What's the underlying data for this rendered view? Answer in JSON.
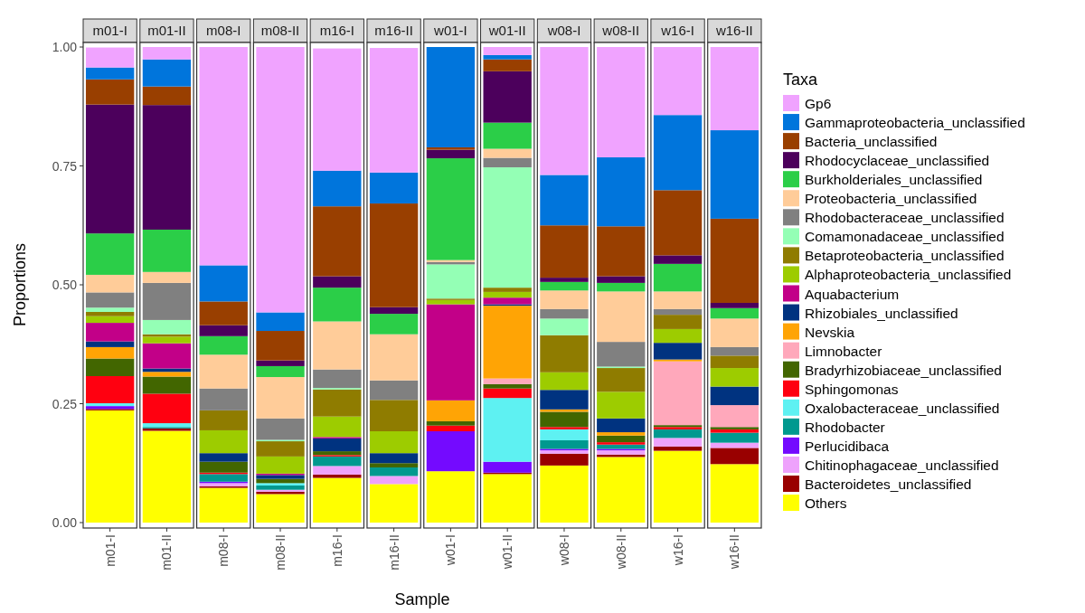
{
  "chart_data": {
    "type": "bar",
    "stacked": true,
    "xlabel": "Sample",
    "ylabel": "Proportions",
    "legend_title": "Taxa",
    "legend": "right",
    "categories": [
      "m01-I",
      "m01-II",
      "m08-I",
      "m08-II",
      "m16-I",
      "m16-II",
      "w01-I",
      "w01-II",
      "w08-I",
      "w08-II",
      "w16-I",
      "w16-II"
    ],
    "ylim": [
      0,
      1
    ],
    "yticks": [
      {
        "value": 0,
        "label": "0.00"
      },
      {
        "value": 0.25,
        "label": "0.25"
      },
      {
        "value": 0.5,
        "label": "0.50"
      },
      {
        "value": 0.75,
        "label": "0.75"
      },
      {
        "value": 1,
        "label": "1.00"
      }
    ],
    "series": [
      {
        "name": "Others",
        "color": "#ffff00",
        "values": [
          0.236,
          0.193,
          0.073,
          0.06,
          0.094,
          0.081,
          0.108,
          0.102,
          0.12,
          0.138,
          0.151,
          0.123
        ]
      },
      {
        "name": "Bacteroidetes_unclassified",
        "color": "#990000",
        "values": [
          0.003,
          0.005,
          0.003,
          0.005,
          0.007,
          null,
          0,
          0.003,
          0.025,
          0.005,
          0.009,
          0.034
        ]
      },
      {
        "name": "Chitinophagaceae_unclassified",
        "color": "#eea2fc",
        "values": [
          0,
          0,
          0.007,
          0.004,
          0.018,
          0.017,
          0,
          0,
          0.007,
          0.009,
          0.018,
          0.011
        ]
      },
      {
        "name": "Perlucidibaca",
        "color": "#740aff",
        "values": [
          0.006,
          0,
          0.003,
          0,
          0,
          0,
          0.084,
          0.023,
          0.003,
          0.003,
          0,
          0
        ]
      },
      {
        "name": "Rhodobacter",
        "color": "#00998f",
        "values": [
          0,
          0.003,
          0.016,
          0.009,
          0.02,
          0.018,
          0,
          0,
          0.018,
          0.009,
          0.018,
          0.021
        ]
      },
      {
        "name": "Oxalobacteraceae_unclassified",
        "color": "#5ef1f2",
        "values": [
          0.006,
          0.008,
          0,
          0.005,
          0,
          0,
          0,
          0.134,
          0.023,
          0,
          0,
          0
        ]
      },
      {
        "name": "Sphingomonas",
        "color": "#ff0010",
        "values": [
          0.057,
          0.062,
          0.003,
          0,
          0.003,
          0,
          0.012,
          0.02,
          0.005,
          0.005,
          0.005,
          0.007
        ]
      },
      {
        "name": "Bradyrhizobiaceae_unclassified",
        "color": "#426600",
        "values": [
          0.037,
          0.036,
          0.023,
          0.009,
          0.008,
          0.009,
          0.009,
          0.009,
          0.032,
          0.014,
          0.004,
          0.005
        ]
      },
      {
        "name": "Limnobacter",
        "color": "#ffa8bb",
        "values": [
          null,
          0,
          0,
          0,
          null,
          0,
          0,
          0.012,
          0,
          0,
          0.134,
          0.046
        ]
      },
      {
        "name": "Nevskia",
        "color": "#ffa405",
        "values": [
          0.024,
          0.01,
          0,
          0,
          0,
          0,
          0.044,
          0.153,
          0.005,
          0.007,
          0.004,
          0
        ]
      },
      {
        "name": "Rhizobiales_unclassified",
        "color": "#003380",
        "values": [
          0.012,
          0.007,
          0.018,
          0.008,
          0.027,
          0.021,
          0,
          0.003,
          0.041,
          0.029,
          0.035,
          0.039
        ]
      },
      {
        "name": "Aquabacterium",
        "color": "#c20088",
        "values": [
          0.039,
          0.053,
          0,
          0.003,
          0.003,
          0,
          0.202,
          0.014,
          0,
          0,
          0,
          0
        ]
      },
      {
        "name": "Alphaproteobacteria_unclassified",
        "color": "#9dcc00",
        "values": [
          0.014,
          0.014,
          0.048,
          0.036,
          0.043,
          0.046,
          0.009,
          0.012,
          0.037,
          0.056,
          0.029,
          0.039
        ]
      },
      {
        "name": "Betaproteobacteria_unclassified",
        "color": "#8f7c00",
        "values": [
          0.009,
          0.005,
          0.042,
          0.032,
          0.057,
          0.066,
          0.003,
          0.009,
          0.078,
          0.05,
          0.03,
          0.026
        ]
      },
      {
        "name": "Comamonadaceae_unclassified",
        "color": "#94ffb5",
        "values": [
          0.009,
          0.03,
          0,
          0.003,
          0.003,
          0,
          0.072,
          0.253,
          0.035,
          0.003,
          0,
          0
        ]
      },
      {
        "name": "Rhodobacteraceae_unclassified",
        "color": "#808080",
        "values": [
          0.032,
          0.078,
          0.046,
          0.045,
          0.039,
          0.041,
          0.005,
          0.02,
          0.02,
          0.052,
          0.012,
          0.018
        ]
      },
      {
        "name": "Proteobacteria_unclassified",
        "color": "#ffcc99",
        "values": [
          0.037,
          0.023,
          0.071,
          0.087,
          0.101,
          0.097,
          0.004,
          0.019,
          0.039,
          0.106,
          0.037,
          0.06
        ]
      },
      {
        "name": "Burkholderiales_unclassified",
        "color": "#2bce48",
        "values": [
          0.087,
          0.089,
          0.039,
          0.023,
          0.071,
          0.043,
          0.214,
          0.055,
          0.018,
          0.018,
          0.058,
          0.022
        ]
      },
      {
        "name": "Rhodocyclaceae_unclassified",
        "color": "#4c005c",
        "values": [
          0.271,
          0.262,
          0.023,
          0.012,
          0.024,
          0.014,
          0.018,
          0.108,
          0.009,
          0.014,
          0.018,
          0.011
        ]
      },
      {
        "name": "Bacteria_unclassified",
        "color": "#993f00",
        "values": [
          0.053,
          0.039,
          0.05,
          0.062,
          0.147,
          0.218,
          0.005,
          0.025,
          0.11,
          0.105,
          0.137,
          0.177
        ]
      },
      {
        "name": "Gammaproteobacteria_unclassified",
        "color": "#0075dc",
        "values": [
          0.025,
          0.057,
          0.076,
          0.039,
          0.075,
          0.065,
          0.211,
          0.009,
          0.106,
          0.145,
          0.158,
          0.186
        ]
      },
      {
        "name": "Gp6",
        "color": "#f0a3ff",
        "values": [
          0.042,
          0.026,
          0.459,
          0.558,
          0.257,
          0.262,
          0,
          0.017,
          0.269,
          0.232,
          0.143,
          0.175
        ]
      }
    ]
  }
}
